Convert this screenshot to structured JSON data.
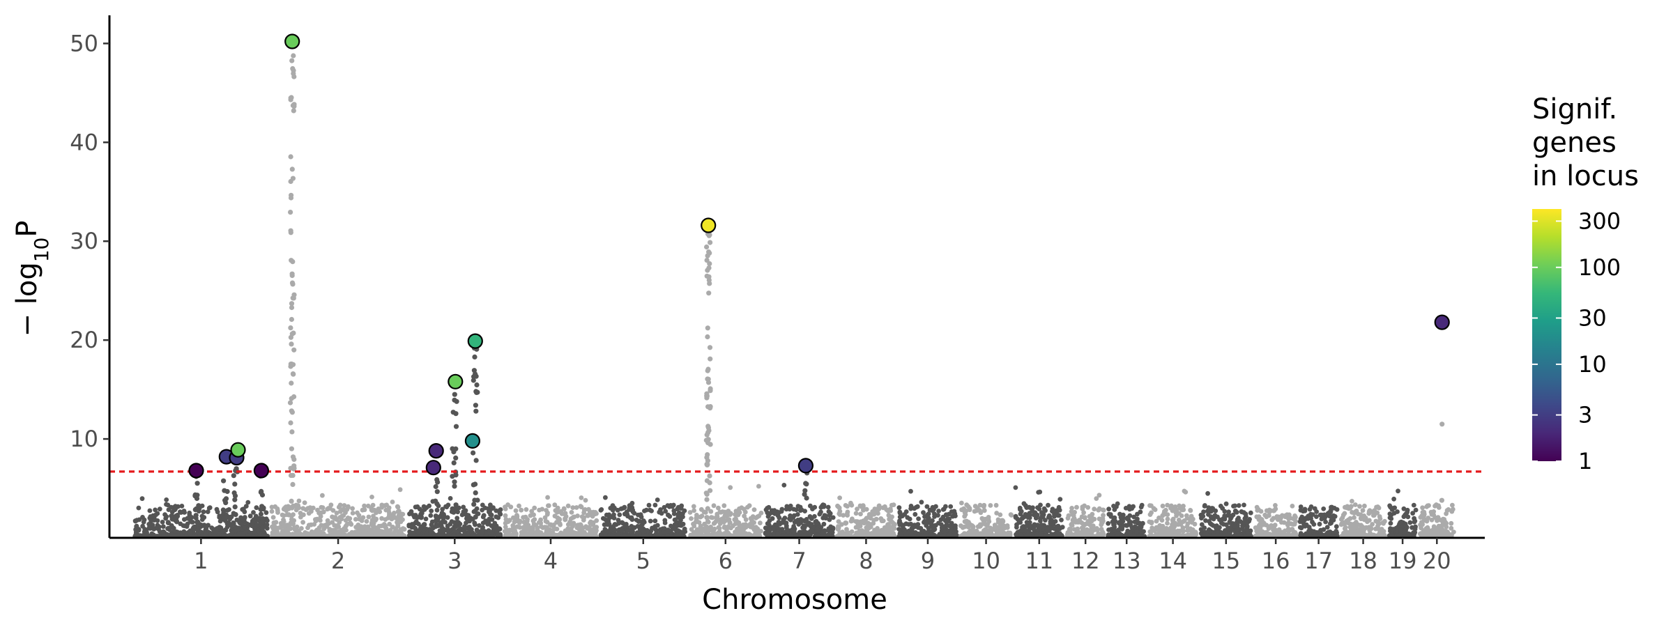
{
  "chart_data": {
    "type": "scatter",
    "title": "",
    "xlabel": "Chromosome",
    "ylabel": "−log₁₀P",
    "ylabel_parts": {
      "prefix": "− log",
      "subscript": "10",
      "suffix": "P"
    },
    "ylim": [
      0,
      52
    ],
    "yticks": [
      10,
      20,
      30,
      40,
      50
    ],
    "grid": false,
    "significance_threshold": 6.7,
    "colors": {
      "dark_chrom": "#555555",
      "light_chrom": "#aaaaaa",
      "threshold_line": "#e41a1c",
      "axis": "#000000",
      "marker_outline": "#000000"
    },
    "chromosomes": [
      {
        "label": "1",
        "start": 0,
        "end": 20,
        "shade": "dark"
      },
      {
        "label": "2",
        "start": 20,
        "end": 40,
        "shade": "light"
      },
      {
        "label": "3",
        "start": 40,
        "end": 54,
        "shade": "dark"
      },
      {
        "label": "4",
        "start": 54,
        "end": 68,
        "shade": "light"
      },
      {
        "label": "5",
        "start": 68,
        "end": 81,
        "shade": "dark"
      },
      {
        "label": "6",
        "start": 81,
        "end": 92,
        "shade": "light"
      },
      {
        "label": "7",
        "start": 92,
        "end": 102.5,
        "shade": "dark"
      },
      {
        "label": "8",
        "start": 102.5,
        "end": 111.5,
        "shade": "light"
      },
      {
        "label": "9",
        "start": 111.5,
        "end": 120.5,
        "shade": "dark"
      },
      {
        "label": "10",
        "start": 120.5,
        "end": 128.5,
        "shade": "light"
      },
      {
        "label": "11",
        "start": 128.5,
        "end": 136,
        "shade": "dark"
      },
      {
        "label": "12",
        "start": 136,
        "end": 142,
        "shade": "light"
      },
      {
        "label": "13",
        "start": 142,
        "end": 148,
        "shade": "dark"
      },
      {
        "label": "14",
        "start": 148,
        "end": 155.5,
        "shade": "light"
      },
      {
        "label": "15",
        "start": 155.5,
        "end": 163.5,
        "shade": "dark"
      },
      {
        "label": "16",
        "start": 163.5,
        "end": 170,
        "shade": "light"
      },
      {
        "label": "17",
        "start": 170,
        "end": 176,
        "shade": "dark"
      },
      {
        "label": "18",
        "start": 176,
        "end": 183,
        "shade": "light"
      },
      {
        "label": "19",
        "start": 183,
        "end": 187.5,
        "shade": "dark"
      },
      {
        "label": "20",
        "start": 187.5,
        "end": 193,
        "shade": "light"
      }
    ],
    "peaks": [
      {
        "x": 9.3,
        "top": 6.2,
        "w": 0.5,
        "n": 8
      },
      {
        "x": 13.5,
        "top": 8.0,
        "w": 0.7,
        "n": 10
      },
      {
        "x": 15.0,
        "top": 8.6,
        "w": 0.6,
        "n": 12
      },
      {
        "x": 18.8,
        "top": 6.5,
        "w": 0.5,
        "n": 8
      },
      {
        "x": 23.3,
        "top": 49.8,
        "w": 0.6,
        "n": 70
      },
      {
        "x": 44.3,
        "top": 8.5,
        "w": 0.6,
        "n": 10
      },
      {
        "x": 47.0,
        "top": 14.5,
        "w": 0.7,
        "n": 22
      },
      {
        "x": 50.0,
        "top": 19.5,
        "w": 0.7,
        "n": 26
      },
      {
        "x": 84.0,
        "top": 31.0,
        "w": 0.6,
        "n": 60,
        "shade": "light"
      },
      {
        "x": 98.2,
        "top": 7.2,
        "w": 0.6,
        "n": 8
      },
      {
        "x": 191.0,
        "top": 11.5,
        "w": 0.1,
        "n": 1,
        "shade": "light"
      }
    ],
    "loci": [
      {
        "x": 9.3,
        "y": 6.8,
        "genes": 1
      },
      {
        "x": 13.7,
        "y": 8.2,
        "genes": 3
      },
      {
        "x": 15.2,
        "y": 8.1,
        "genes": 3
      },
      {
        "x": 15.4,
        "y": 8.9,
        "genes": 100
      },
      {
        "x": 18.8,
        "y": 6.8,
        "genes": 1
      },
      {
        "x": 23.3,
        "y": 50.2,
        "genes": 100
      },
      {
        "x": 43.9,
        "y": 7.1,
        "genes": 2
      },
      {
        "x": 44.3,
        "y": 8.8,
        "genes": 2
      },
      {
        "x": 47.1,
        "y": 15.8,
        "genes": 100
      },
      {
        "x": 49.6,
        "y": 9.8,
        "genes": 20
      },
      {
        "x": 50.0,
        "y": 19.9,
        "genes": 50
      },
      {
        "x": 84.0,
        "y": 31.6,
        "genes": 350
      },
      {
        "x": 98.2,
        "y": 7.3,
        "genes": 3
      },
      {
        "x": 191.0,
        "y": 21.8,
        "genes": 2
      }
    ],
    "legend": {
      "title_lines": [
        "Signif.",
        "genes",
        "in locus"
      ],
      "scale": "log",
      "range": [
        1,
        400
      ],
      "ticks": [
        1,
        3,
        10,
        30,
        100,
        300
      ],
      "tick_labels": [
        "1",
        "3",
        "10",
        "30",
        "100",
        "300"
      ],
      "palette": [
        "#440154",
        "#482878",
        "#3e4989",
        "#31688e",
        "#26828e",
        "#1f9e89",
        "#35b779",
        "#6ece58",
        "#b5de2b",
        "#fde725"
      ],
      "placement": "right"
    }
  }
}
